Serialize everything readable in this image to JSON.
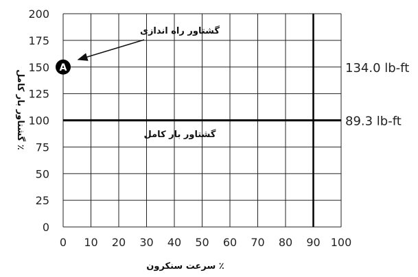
{
  "chart_data": {
    "type": "line",
    "title": "",
    "xlabel": "٪ سرعت سنکرون",
    "ylabel": "٪ گشتاور بار کامل",
    "x_ticks": [
      0,
      10,
      20,
      30,
      40,
      50,
      60,
      70,
      80,
      90,
      100
    ],
    "y_ticks": [
      0,
      25,
      50,
      75,
      100,
      125,
      150,
      175,
      200
    ],
    "xlim": [
      0,
      100
    ],
    "ylim": [
      0,
      200
    ],
    "grid": true,
    "reference_lines": [
      {
        "orientation": "horizontal",
        "y": 100,
        "label": "گشتاور بار کامل",
        "right_label": "89.3 lb-ft"
      },
      {
        "orientation": "vertical",
        "x": 90
      }
    ],
    "marker": {
      "letter": "A",
      "x": 0,
      "y": 150,
      "right_label": "134.0 lb-ft",
      "annotation": "گشتاور راه اندازی"
    },
    "colors": {
      "grid": "#222222",
      "reference": "#000000",
      "marker": "#000000"
    }
  }
}
